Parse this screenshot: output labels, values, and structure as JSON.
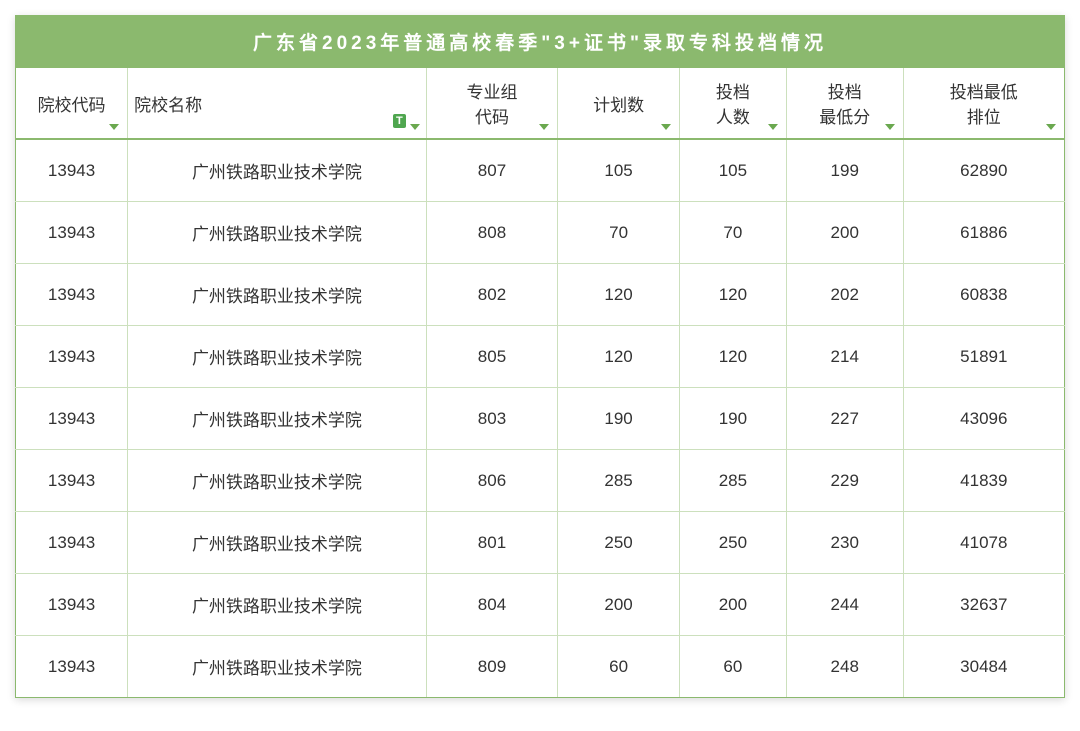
{
  "title": "广东省2023年普通高校春季\"3+证书\"录取专科投档情况",
  "columns": {
    "code": "院校代码",
    "name": "院校名称",
    "group": "专业组\n代码",
    "plan": "计划数",
    "people": "投档\n人数",
    "score": "投档\n最低分",
    "rank": "投档最低\n排位"
  },
  "badge_text": "T",
  "colors": {
    "header_bg": "#8bb96e",
    "header_text": "#ffffff",
    "cell_text": "#333333",
    "border_outer": "#8bb96e",
    "border_inner": "#cce0bd",
    "filter_arrow": "#6aa84f",
    "badge_bg": "#4fa64f"
  },
  "typography": {
    "title_fontsize": 19,
    "header_fontsize": 17,
    "cell_fontsize": 17
  },
  "rows": [
    {
      "code": "13943",
      "name": "广州铁路职业技术学院",
      "group": "807",
      "plan": "105",
      "people": "105",
      "score": "199",
      "rank": "62890"
    },
    {
      "code": "13943",
      "name": "广州铁路职业技术学院",
      "group": "808",
      "plan": "70",
      "people": "70",
      "score": "200",
      "rank": "61886"
    },
    {
      "code": "13943",
      "name": "广州铁路职业技术学院",
      "group": "802",
      "plan": "120",
      "people": "120",
      "score": "202",
      "rank": "60838"
    },
    {
      "code": "13943",
      "name": "广州铁路职业技术学院",
      "group": "805",
      "plan": "120",
      "people": "120",
      "score": "214",
      "rank": "51891"
    },
    {
      "code": "13943",
      "name": "广州铁路职业技术学院",
      "group": "803",
      "plan": "190",
      "people": "190",
      "score": "227",
      "rank": "43096"
    },
    {
      "code": "13943",
      "name": "广州铁路职业技术学院",
      "group": "806",
      "plan": "285",
      "people": "285",
      "score": "229",
      "rank": "41839"
    },
    {
      "code": "13943",
      "name": "广州铁路职业技术学院",
      "group": "801",
      "plan": "250",
      "people": "250",
      "score": "230",
      "rank": "41078"
    },
    {
      "code": "13943",
      "name": "广州铁路职业技术学院",
      "group": "804",
      "plan": "200",
      "people": "200",
      "score": "244",
      "rank": "32637"
    },
    {
      "code": "13943",
      "name": "广州铁路职业技术学院",
      "group": "809",
      "plan": "60",
      "people": "60",
      "score": "248",
      "rank": "30484"
    }
  ]
}
